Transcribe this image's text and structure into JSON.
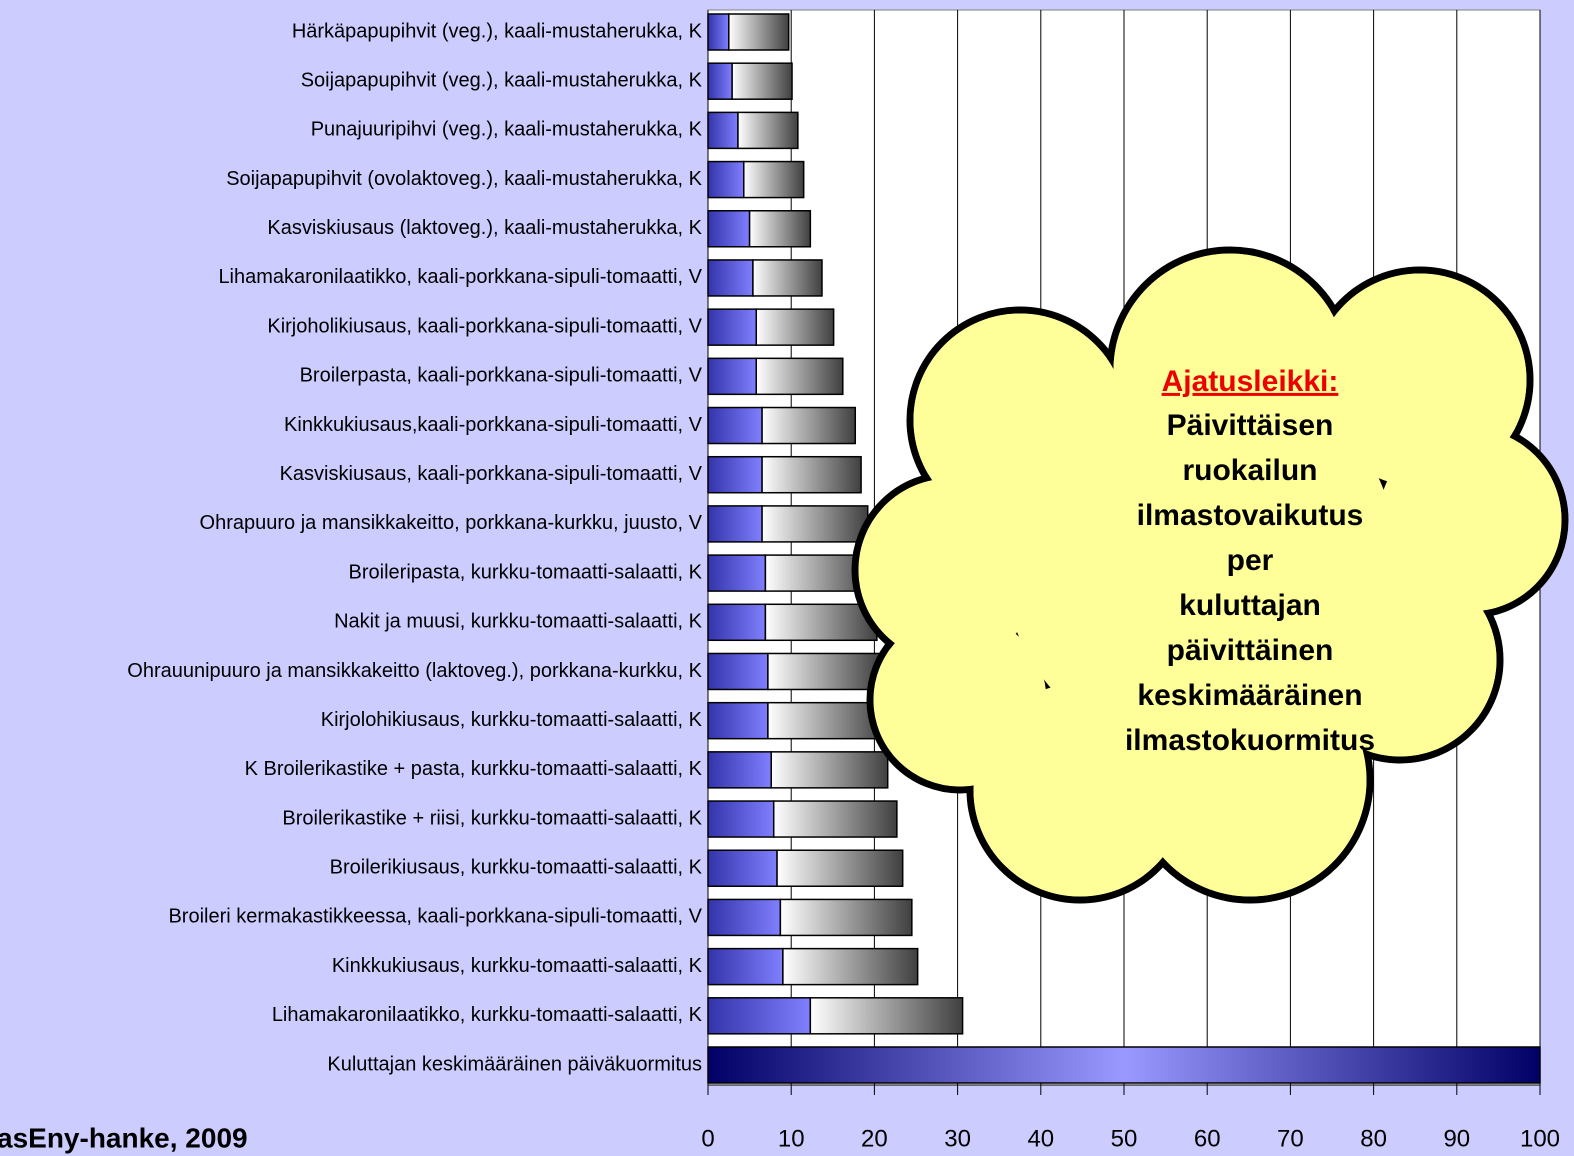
{
  "chart_data": {
    "type": "stacked-hbar",
    "categories": [
      "Härkäpapupihvit (veg.), kaali-mustaherukka, K",
      "Soijapapupihvit (veg.), kaali-mustaherukka, K",
      "Punajuuripihvi (veg.), kaali-mustaherukka, K",
      "Soijapapupihvit (ovolaktoveg.), kaali-mustaherukka, K",
      "Kasviskiusaus (laktoveg.), kaali-mustaherukka, K",
      "Lihamakaronilaatikko, kaali-porkkana-sipuli-tomaatti, V",
      "Kirjoholikiusaus, kaali-porkkana-sipuli-tomaatti, V",
      "Broilerpasta, kaali-porkkana-sipuli-tomaatti, V",
      "Kinkkukiusaus,kaali-porkkana-sipuli-tomaatti, V",
      "Kasviskiusaus, kaali-porkkana-sipuli-tomaatti, V",
      "Ohrapuuro ja mansikkakeitto, porkkana-kurkku, juusto, V",
      "Broileripasta, kurkku-tomaatti-salaatti, K",
      "Nakit ja muusi, kurkku-tomaatti-salaatti, K",
      "Ohrauunipuuro ja mansikkakeitto (laktoveg.), porkkana-kurkku, K",
      "Kirjolohikiusaus, kurkku-tomaatti-salaatti, K",
      "K Broilerikastike + pasta, kurkku-tomaatti-salaatti, K",
      "Broilerikastike + riisi, kurkku-tomaatti-salaatti, K",
      "Broilerikiusaus, kurkku-tomaatti-salaatti, K",
      "Broileri kermakastikkeessa, kaali-porkkana-sipuli-tomaatti, V",
      "Kinkkukiusaus, kurkku-tomaatti-salaatti, K",
      "Lihamakaronilaatikko, kurkku-tomaatti-salaatti, K",
      "Kuluttajan keskimääräinen päiväkuormitus"
    ],
    "series": [
      {
        "color": "#8080ff",
        "values": [
          2.5,
          2.9,
          3.6,
          4.3,
          5.0,
          5.4,
          5.8,
          5.8,
          6.5,
          6.5,
          6.5,
          6.9,
          6.9,
          7.2,
          7.2,
          7.6,
          7.9,
          8.3,
          8.7,
          9.0,
          12.3,
          null
        ]
      },
      {
        "color": "#404040",
        "values": [
          7.2,
          7.2,
          7.2,
          7.2,
          7.3,
          8.3,
          9.3,
          10.4,
          11.2,
          11.9,
          12.7,
          13.1,
          13.4,
          13.5,
          14.1,
          14.0,
          14.8,
          15.1,
          15.8,
          16.2,
          18.3,
          null
        ]
      },
      {
        "color": "#000066",
        "values": [
          null,
          null,
          null,
          null,
          null,
          null,
          null,
          null,
          null,
          null,
          null,
          null,
          null,
          null,
          null,
          null,
          null,
          null,
          null,
          null,
          null,
          100
        ]
      }
    ],
    "xlim": [
      0,
      100
    ],
    "xticks": [
      0,
      10,
      20,
      30,
      40,
      50,
      60,
      70,
      80,
      90,
      100
    ],
    "grid": true,
    "source": "asEny-hanke, 2009",
    "annotation": {
      "heading": "Ajatusleikki:",
      "lines": [
        "Päivittäisen",
        "ruokailun",
        "ilmastovaikutus",
        "per",
        "kuluttajan",
        "päivittäinen",
        "keskimääräinen",
        "ilmastokuormitus"
      ]
    }
  }
}
